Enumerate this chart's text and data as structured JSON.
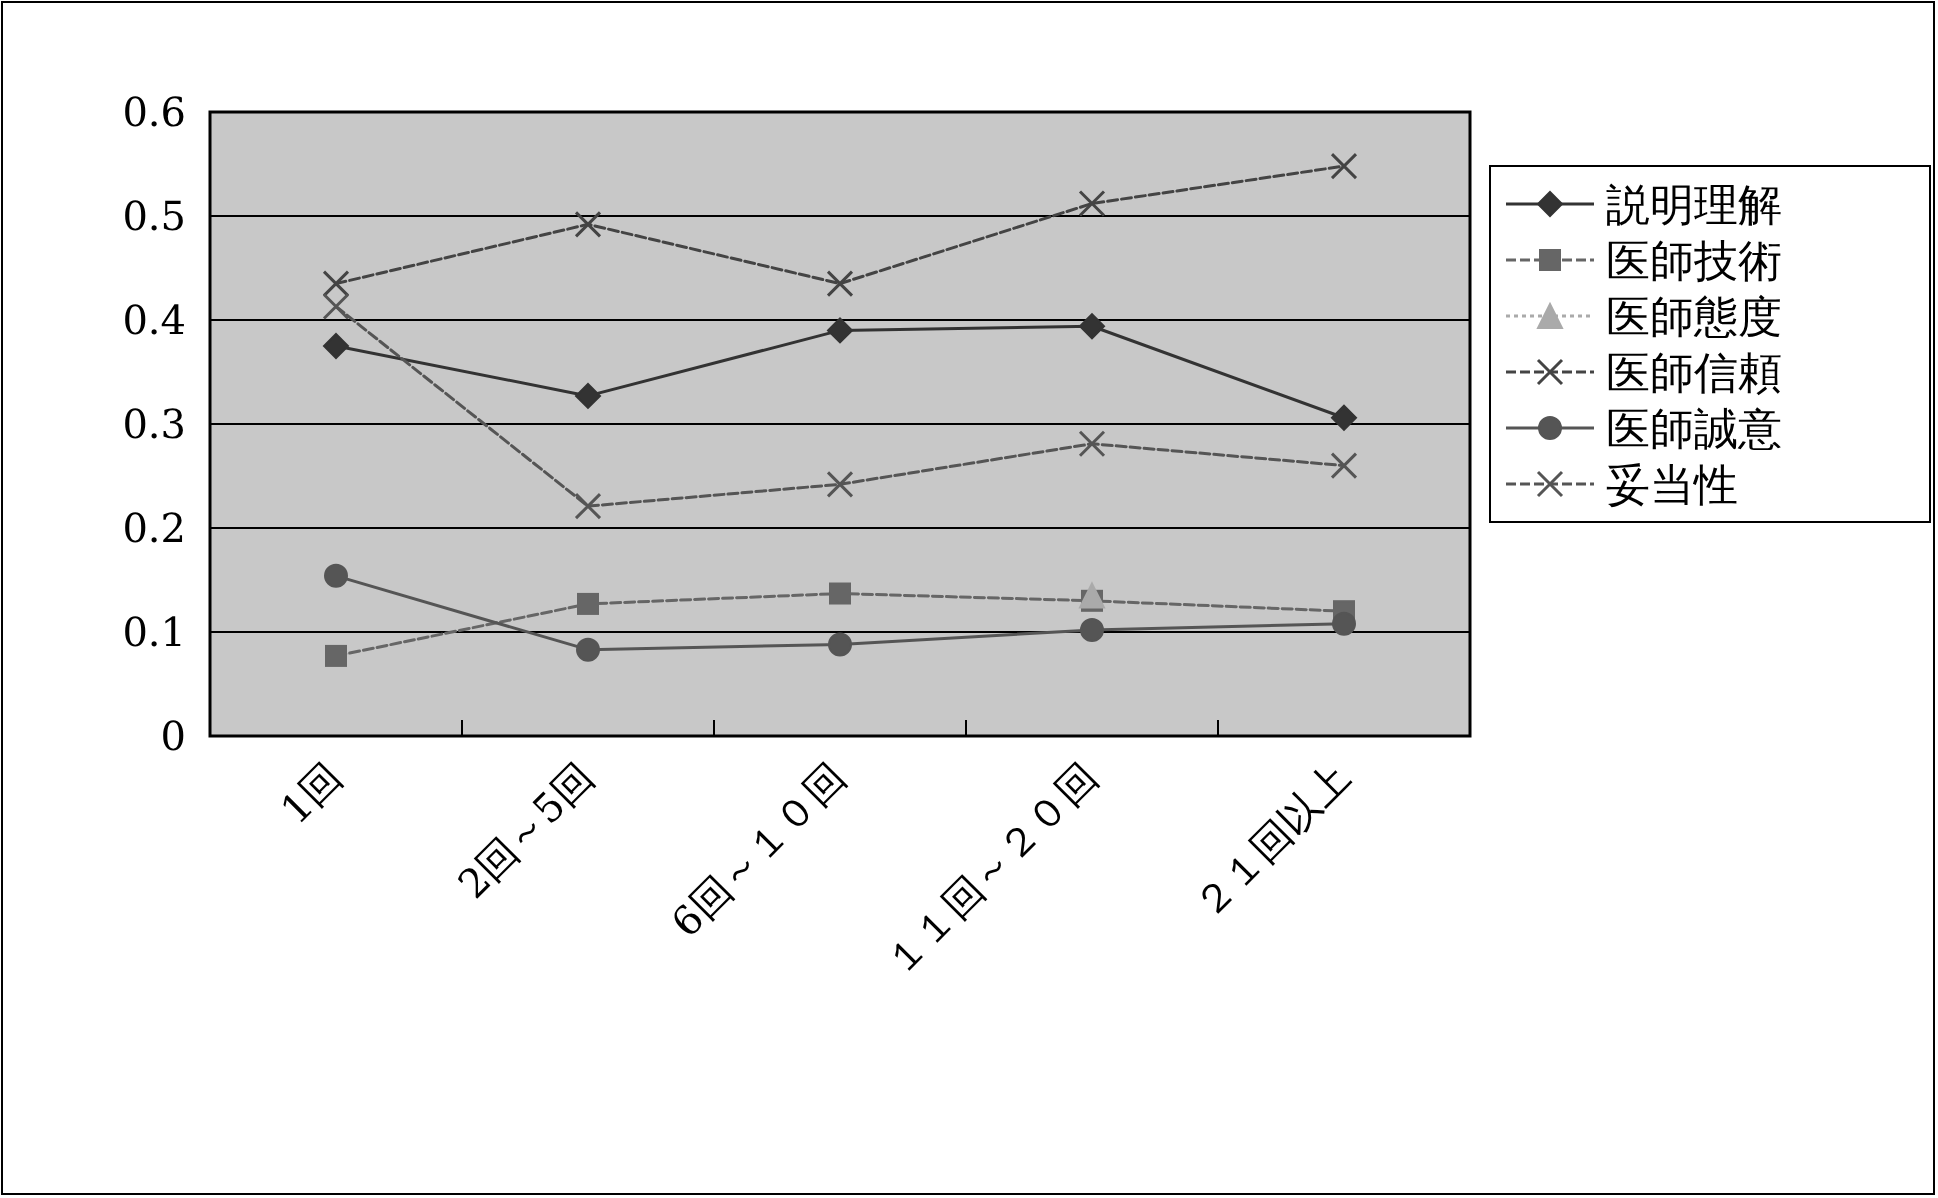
{
  "chart_data": {
    "type": "line",
    "categories": [
      "1回",
      "2回～5回",
      "6回～１０回",
      "１１回～２０回",
      "２１回以上"
    ],
    "ylim": [
      0,
      0.6
    ],
    "yticks": [
      0,
      0.1,
      0.2,
      0.3,
      0.4,
      0.5,
      0.6
    ],
    "grid": "y",
    "legend": "right",
    "series": [
      {
        "name": "説明理解",
        "color": "#333333",
        "marker": "diamond",
        "line_style": "solid",
        "values": [
          0.375,
          0.327,
          0.39,
          0.394,
          0.306
        ]
      },
      {
        "name": "医師技術",
        "color": "#666666",
        "marker": "square",
        "line_style": "dashed",
        "values": [
          0.077,
          0.127,
          0.137,
          0.13,
          0.12
        ]
      },
      {
        "name": "医師態度",
        "color": "#aaaaaa",
        "marker": "triangle",
        "line_style": "dotted",
        "values": [
          null,
          null,
          null,
          0.135,
          null
        ]
      },
      {
        "name": "医師信頼",
        "color": "#444444",
        "marker": "cross",
        "line_style": "dashed",
        "values": [
          0.435,
          0.492,
          0.435,
          0.512,
          0.548
        ]
      },
      {
        "name": "医師誠意",
        "color": "#555555",
        "marker": "circle",
        "line_style": "solid",
        "values": [
          0.154,
          0.083,
          0.088,
          0.102,
          0.108
        ]
      },
      {
        "name": "妥当性",
        "color": "#555555",
        "marker": "cross",
        "line_style": "dashed",
        "values": [
          0.413,
          0.221,
          0.242,
          0.281,
          0.26
        ]
      }
    ]
  }
}
